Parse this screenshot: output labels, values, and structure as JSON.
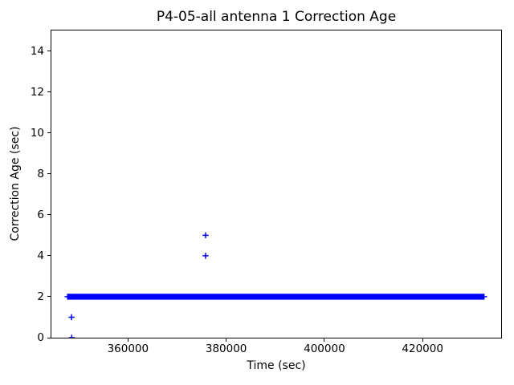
{
  "chart_data": {
    "type": "scatter",
    "title": "P4-05-all antenna 1 Correction Age",
    "xlabel": "Time (sec)",
    "ylabel": "Correction Age (sec)",
    "xlim": [
      344400,
      436000
    ],
    "ylim": [
      0,
      15
    ],
    "xticks": [
      360000,
      380000,
      400000,
      420000
    ],
    "yticks": [
      0,
      2,
      4,
      6,
      8,
      10,
      12,
      14
    ],
    "grid": false,
    "legend": false,
    "marker": "plus",
    "marker_color": "#0000ff",
    "axis_color": "#000000",
    "background_color": "#ffffff",
    "series": [
      {
        "name": "antenna 1 correction age",
        "dense_band": {
          "y": 2,
          "x_start": 347700,
          "x_end": 432500
        },
        "points": [
          [
            348550,
            0
          ],
          [
            348500,
            1
          ],
          [
            375800,
            4
          ],
          [
            375800,
            5
          ]
        ]
      }
    ]
  }
}
